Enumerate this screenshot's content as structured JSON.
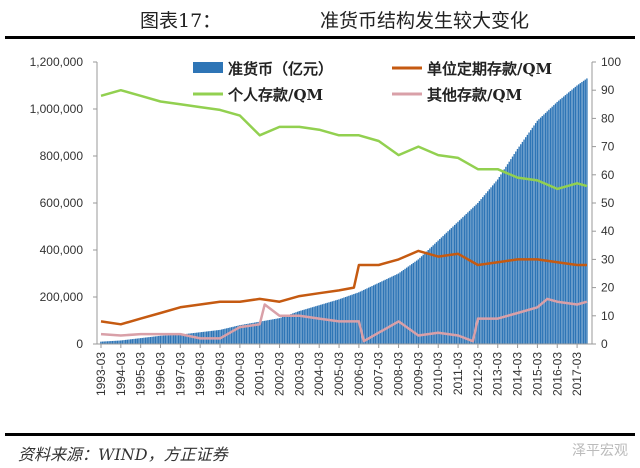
{
  "header": {
    "figure_no": "图表17：",
    "title": "准货币结构发生较大变化"
  },
  "footer": {
    "source": "资料来源：WIND，方正证券",
    "watermark": "泽平宏观"
  },
  "chart_data": {
    "type": "bar+line",
    "title": "准货币结构发生较大变化",
    "y_left": {
      "lim": [
        0,
        1200000
      ],
      "ticks": [
        "0",
        "200,000",
        "400,000",
        "600,000",
        "800,000",
        "1,000,000",
        "1,200,000"
      ]
    },
    "y_right": {
      "lim": [
        0,
        100
      ],
      "ticks": [
        "0",
        "10",
        "20",
        "30",
        "40",
        "50",
        "60",
        "70",
        "80",
        "90",
        "100"
      ]
    },
    "x_ticks": [
      "1993-03",
      "1994-03",
      "1995-03",
      "1996-03",
      "1997-03",
      "1998-03",
      "1999-03",
      "2000-03",
      "2001-03",
      "2002-03",
      "2003-03",
      "2004-03",
      "2005-03",
      "2006-03",
      "2007-03",
      "2008-03",
      "2009-03",
      "2010-03",
      "2011-03",
      "2012-03",
      "2013-03",
      "2014-03",
      "2015-03",
      "2016-03",
      "2017-03"
    ],
    "legend": "top",
    "colors": {
      "qm": "#2e75b6",
      "unit": "#c55a11",
      "personal": "#92d050",
      "other": "#d9a0a8"
    },
    "series": [
      {
        "name": "准货币（亿元）",
        "axis": "left",
        "kind": "bar",
        "points": [
          [
            "1993-03",
            10000
          ],
          [
            "1994-03",
            15000
          ],
          [
            "1995-03",
            25000
          ],
          [
            "1996-03",
            35000
          ],
          [
            "1997-03",
            40000
          ],
          [
            "1998-03",
            50000
          ],
          [
            "1999-03",
            60000
          ],
          [
            "2000-03",
            80000
          ],
          [
            "2001-03",
            95000
          ],
          [
            "2002-03",
            110000
          ],
          [
            "2003-03",
            140000
          ],
          [
            "2004-03",
            165000
          ],
          [
            "2005-03",
            190000
          ],
          [
            "2006-03",
            220000
          ],
          [
            "2007-03",
            260000
          ],
          [
            "2008-03",
            300000
          ],
          [
            "2009-03",
            360000
          ],
          [
            "2010-03",
            440000
          ],
          [
            "2011-03",
            520000
          ],
          [
            "2012-03",
            600000
          ],
          [
            "2013-03",
            700000
          ],
          [
            "2014-03",
            830000
          ],
          [
            "2015-03",
            950000
          ],
          [
            "2016-03",
            1030000
          ],
          [
            "2017-03",
            1100000
          ],
          [
            "2017-09",
            1130000
          ]
        ]
      },
      {
        "name": "单位定期存款/QM",
        "axis": "right",
        "kind": "line",
        "points": [
          [
            "1993-03",
            8
          ],
          [
            "1994-03",
            7
          ],
          [
            "1995-03",
            9
          ],
          [
            "1996-03",
            11
          ],
          [
            "1997-03",
            13
          ],
          [
            "1998-03",
            14
          ],
          [
            "1999-03",
            15
          ],
          [
            "2000-03",
            15
          ],
          [
            "2001-03",
            16
          ],
          [
            "2002-03",
            15
          ],
          [
            "2003-03",
            17
          ],
          [
            "2004-03",
            18
          ],
          [
            "2005-03",
            19
          ],
          [
            "2005-12",
            20
          ],
          [
            "2006-03",
            28
          ],
          [
            "2007-03",
            28
          ],
          [
            "2008-03",
            30
          ],
          [
            "2009-03",
            33
          ],
          [
            "2010-03",
            31
          ],
          [
            "2011-03",
            32
          ],
          [
            "2012-03",
            28
          ],
          [
            "2013-03",
            29
          ],
          [
            "2014-03",
            30
          ],
          [
            "2015-03",
            30
          ],
          [
            "2016-03",
            29
          ],
          [
            "2017-03",
            28
          ],
          [
            "2017-09",
            28
          ]
        ]
      },
      {
        "name": "个人存款/QM",
        "axis": "right",
        "kind": "line",
        "points": [
          [
            "1993-03",
            88
          ],
          [
            "1994-03",
            90
          ],
          [
            "1995-03",
            88
          ],
          [
            "1996-03",
            86
          ],
          [
            "1997-03",
            85
          ],
          [
            "1998-03",
            84
          ],
          [
            "1999-03",
            83
          ],
          [
            "2000-03",
            81
          ],
          [
            "2001-03",
            74
          ],
          [
            "2002-03",
            77
          ],
          [
            "2003-03",
            77
          ],
          [
            "2004-03",
            76
          ],
          [
            "2005-03",
            74
          ],
          [
            "2006-03",
            74
          ],
          [
            "2007-03",
            72
          ],
          [
            "2008-03",
            67
          ],
          [
            "2009-03",
            70
          ],
          [
            "2010-03",
            67
          ],
          [
            "2011-03",
            66
          ],
          [
            "2012-03",
            62
          ],
          [
            "2013-03",
            62
          ],
          [
            "2014-03",
            59
          ],
          [
            "2015-03",
            58
          ],
          [
            "2016-03",
            55
          ],
          [
            "2017-03",
            57
          ],
          [
            "2017-09",
            56
          ]
        ]
      },
      {
        "name": "其他存款/QM",
        "axis": "right",
        "kind": "line",
        "points": [
          [
            "1993-03",
            3.5
          ],
          [
            "1994-03",
            3
          ],
          [
            "1995-03",
            3.5
          ],
          [
            "1996-03",
            3.5
          ],
          [
            "1997-03",
            3.5
          ],
          [
            "1998-03",
            2
          ],
          [
            "1999-03",
            2
          ],
          [
            "2000-03",
            6
          ],
          [
            "2001-03",
            7
          ],
          [
            "2001-06",
            14
          ],
          [
            "2002-03",
            10
          ],
          [
            "2003-03",
            10
          ],
          [
            "2004-03",
            9
          ],
          [
            "2005-03",
            8
          ],
          [
            "2006-03",
            8
          ],
          [
            "2006-06",
            1
          ],
          [
            "2007-03",
            4
          ],
          [
            "2008-03",
            8
          ],
          [
            "2009-03",
            3
          ],
          [
            "2010-03",
            4
          ],
          [
            "2011-03",
            3
          ],
          [
            "2011-12",
            1
          ],
          [
            "2012-03",
            9
          ],
          [
            "2013-03",
            9
          ],
          [
            "2014-03",
            11
          ],
          [
            "2015-03",
            13
          ],
          [
            "2015-09",
            16
          ],
          [
            "2016-03",
            15
          ],
          [
            "2017-03",
            14
          ],
          [
            "2017-09",
            15
          ]
        ]
      }
    ]
  }
}
